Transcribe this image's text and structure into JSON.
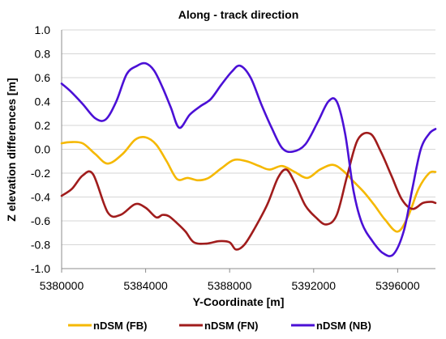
{
  "chart_data": {
    "type": "line",
    "title": "Along - track direction",
    "xlabel": "Y-Coordinate [m]",
    "ylabel": "Z elevation differences [m]",
    "xlim": [
      5380000,
      5397800
    ],
    "ylim": [
      -1.0,
      1.0
    ],
    "x_ticks": [
      5380000,
      5384000,
      5388000,
      5392000,
      5396000
    ],
    "x_tick_labels": [
      "5380000",
      "5384000",
      "5388000",
      "5392000",
      "5396000"
    ],
    "y_ticks": [
      -1.0,
      -0.8,
      -0.6,
      -0.4,
      -0.2,
      0.0,
      0.2,
      0.4,
      0.6,
      0.8,
      1.0
    ],
    "y_tick_labels": [
      "-1.0",
      "-0.8",
      "-0.6",
      "-0.4",
      "-0.2",
      "0.0",
      "0.2",
      "0.4",
      "0.6",
      "0.8",
      "1.0"
    ],
    "grid": "horizontal",
    "legend_position": "bottom",
    "series": [
      {
        "name": "nDSM (FB)",
        "color": "#F5B800",
        "x": [
          5380000,
          5380400,
          5381000,
          5381600,
          5382200,
          5382900,
          5383500,
          5384000,
          5384500,
          5385000,
          5385500,
          5386000,
          5386500,
          5387000,
          5387600,
          5388200,
          5388800,
          5389400,
          5389900,
          5390500,
          5391100,
          5391700,
          5392300,
          5392900,
          5393400,
          5393900,
          5394400,
          5394900,
          5395400,
          5396000,
          5396500,
          5397000,
          5397500,
          5397800
        ],
        "y": [
          0.05,
          0.06,
          0.05,
          -0.04,
          -0.12,
          -0.04,
          0.08,
          0.1,
          0.04,
          -0.1,
          -0.25,
          -0.24,
          -0.26,
          -0.24,
          -0.16,
          -0.09,
          -0.1,
          -0.14,
          -0.17,
          -0.14,
          -0.19,
          -0.24,
          -0.17,
          -0.13,
          -0.18,
          -0.27,
          -0.36,
          -0.47,
          -0.59,
          -0.69,
          -0.56,
          -0.33,
          -0.2,
          -0.19
        ]
      },
      {
        "name": "nDSM (FN)",
        "color": "#A01C1C",
        "x": [
          5380000,
          5380500,
          5381000,
          5381500,
          5382200,
          5382800,
          5383500,
          5384000,
          5384500,
          5384800,
          5385100,
          5385500,
          5385900,
          5386300,
          5386900,
          5387500,
          5388000,
          5388300,
          5388700,
          5389200,
          5389800,
          5390300,
          5390700,
          5391100,
          5391600,
          5392100,
          5392600,
          5393100,
          5393600,
          5394100,
          5394700,
          5395200,
          5395700,
          5396200,
          5396700,
          5397200,
          5397600,
          5397800
        ],
        "y": [
          -0.39,
          -0.33,
          -0.22,
          -0.21,
          -0.53,
          -0.55,
          -0.46,
          -0.49,
          -0.57,
          -0.55,
          -0.56,
          -0.62,
          -0.69,
          -0.78,
          -0.79,
          -0.77,
          -0.78,
          -0.84,
          -0.8,
          -0.66,
          -0.46,
          -0.24,
          -0.17,
          -0.28,
          -0.47,
          -0.57,
          -0.63,
          -0.55,
          -0.22,
          0.08,
          0.13,
          -0.02,
          -0.22,
          -0.42,
          -0.5,
          -0.45,
          -0.44,
          -0.45
        ]
      },
      {
        "name": "nDSM (NB)",
        "color": "#4B10D6",
        "x": [
          5380000,
          5380400,
          5381000,
          5381600,
          5382100,
          5382600,
          5383100,
          5383600,
          5384000,
          5384400,
          5384800,
          5385200,
          5385600,
          5386100,
          5386600,
          5387100,
          5387600,
          5388100,
          5388500,
          5389000,
          5389500,
          5390000,
          5390500,
          5391000,
          5391600,
          5392200,
          5392700,
          5393100,
          5393500,
          5393900,
          5394300,
          5394800,
          5395300,
          5395800,
          5396300,
          5396700,
          5397100,
          5397500,
          5397800
        ],
        "y": [
          0.55,
          0.49,
          0.38,
          0.26,
          0.25,
          0.4,
          0.63,
          0.7,
          0.72,
          0.66,
          0.52,
          0.35,
          0.18,
          0.29,
          0.36,
          0.42,
          0.54,
          0.65,
          0.7,
          0.6,
          0.38,
          0.18,
          0.01,
          -0.02,
          0.04,
          0.23,
          0.4,
          0.4,
          0.13,
          -0.35,
          -0.62,
          -0.77,
          -0.87,
          -0.88,
          -0.68,
          -0.33,
          0.0,
          0.13,
          0.17
        ]
      }
    ]
  }
}
